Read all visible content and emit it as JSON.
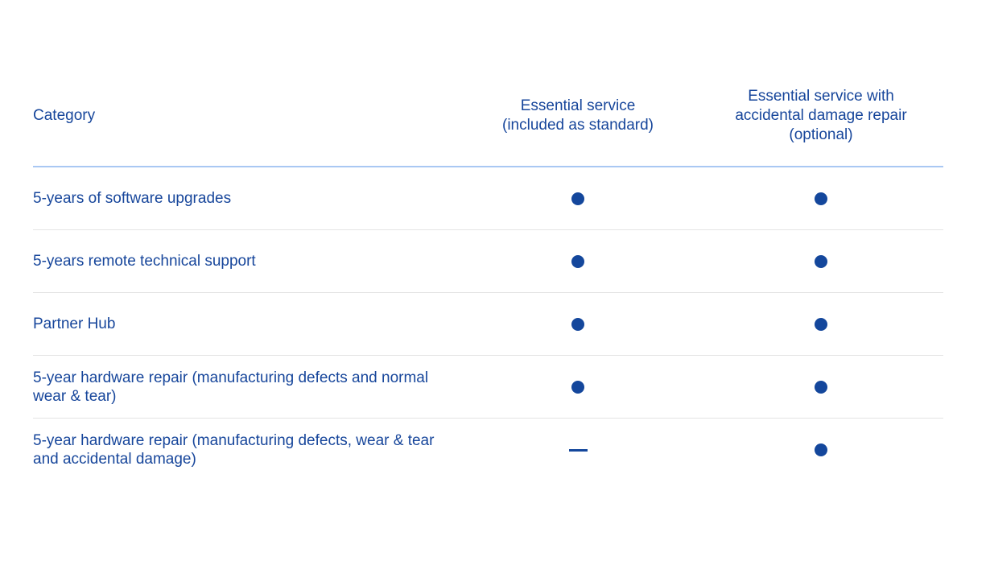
{
  "colors": {
    "text": "#17469B",
    "dot": "#14479C",
    "header_rule": "#A9C8F3",
    "row_rule": "#E4E4E4",
    "background": "#FFFFFF"
  },
  "table": {
    "header": {
      "category_label": "Category",
      "col_essential_label": "Essential service\n(included as standard)",
      "col_adr_label": "Essential service with\naccidental damage repair\n(optional)"
    },
    "icons": {
      "included": "dot-icon",
      "not_included": "dash-icon"
    },
    "rows": [
      {
        "category": "5-years of software upgrades",
        "essential": "included",
        "essential_adr": "included"
      },
      {
        "category": "5-years remote technical support",
        "essential": "included",
        "essential_adr": "included"
      },
      {
        "category": "Partner Hub",
        "essential": "included",
        "essential_adr": "included"
      },
      {
        "category": "5-year hardware repair (manufacturing defects and normal wear & tear)",
        "essential": "included",
        "essential_adr": "included"
      },
      {
        "category": "5-year hardware repair (manufacturing defects, wear & tear and accidental damage)",
        "essential": "not_included",
        "essential_adr": "included"
      }
    ]
  }
}
